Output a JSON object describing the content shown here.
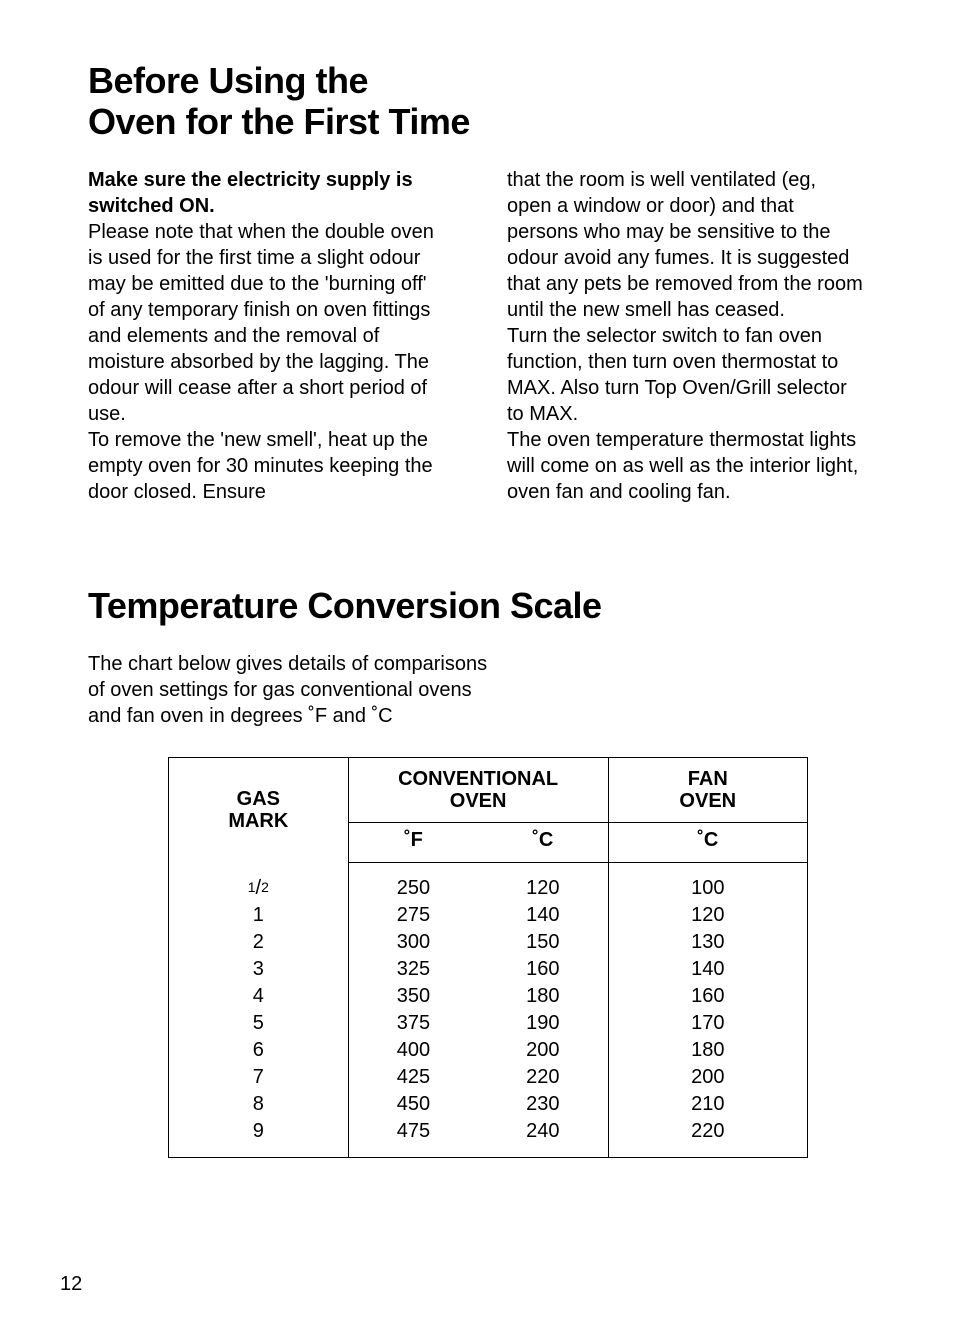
{
  "section1": {
    "title": "Before Using the\nOven for the First Time",
    "left": {
      "lead": "Make sure the electricity supply is switched ON.",
      "body1": "Please note that when the double oven is used for the first time a slight odour may be emitted due to the 'burning off' of any temporary finish on oven fittings and elements and the removal of moisture absorbed by the lagging. The odour will cease after a short period of use.",
      "body2": "To remove the 'new smell', heat up the empty oven for 30 minutes keeping the door closed. Ensure"
    },
    "right": {
      "body1": "that the room is well ventilated (eg, open a window or door) and that persons who may be sensitive to the odour avoid any fumes. It is suggested that any pets be removed from the room until the new smell has ceased.",
      "body2": "Turn the selector switch to fan oven function, then turn oven thermostat to MAX. Also turn Top Oven/Grill selector to MAX.",
      "body3": "The oven temperature thermostat lights will come on as well as the interior light, oven fan and cooling fan."
    }
  },
  "section2": {
    "title": "Temperature Conversion Scale",
    "intro": "The chart below gives details of comparisons of oven settings for gas conventional ovens and fan oven in degrees ˚F and ˚C"
  },
  "table": {
    "headers": {
      "gas": "GAS\nMARK",
      "conv": "CONVENTIONAL\nOVEN",
      "fan": "FAN\nOVEN",
      "degF": "˚F",
      "degC": "˚C",
      "degC2": "˚C"
    },
    "rows": [
      {
        "gas": "1/2",
        "f": "250",
        "c": "120",
        "fan": "100"
      },
      {
        "gas": "1",
        "f": "275",
        "c": "140",
        "fan": "120"
      },
      {
        "gas": "2",
        "f": "300",
        "c": "150",
        "fan": "130"
      },
      {
        "gas": "3",
        "f": "325",
        "c": "160",
        "fan": "140"
      },
      {
        "gas": "4",
        "f": "350",
        "c": "180",
        "fan": "160"
      },
      {
        "gas": "5",
        "f": "375",
        "c": "190",
        "fan": "170"
      },
      {
        "gas": "6",
        "f": "400",
        "c": "200",
        "fan": "180"
      },
      {
        "gas": "7",
        "f": "425",
        "c": "220",
        "fan": "200"
      },
      {
        "gas": "8",
        "f": "450",
        "c": "230",
        "fan": "210"
      },
      {
        "gas": "9",
        "f": "475",
        "c": "240",
        "fan": "220"
      }
    ],
    "style": {
      "border_color": "#000000",
      "border_width": 1.5,
      "font_size": 20,
      "header_weight": 700,
      "background": "#ffffff",
      "col_widths": {
        "gas": 180,
        "convF": 130,
        "convC": 130,
        "fan": 200
      }
    }
  },
  "pageNumber": "12",
  "typography": {
    "heading_size": 36,
    "heading_weight": 700,
    "body_size": 20,
    "body_line_height": 1.3,
    "font_family": "Myriad Pro / Helvetica-like sans-serif",
    "text_color": "#000000",
    "background_color": "#ffffff"
  }
}
